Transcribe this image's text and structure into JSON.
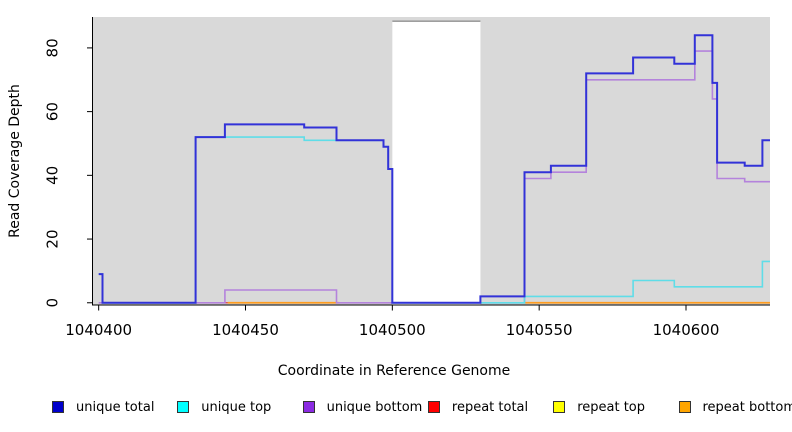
{
  "chart_data": {
    "type": "line",
    "subtype": "step-post",
    "title": "",
    "xlabel": "Coordinate in Reference Genome",
    "ylabel": "Read Coverage Depth",
    "xlim": [
      1040397.9,
      1040628.6
    ],
    "ylim": [
      -0.7,
      89.7
    ],
    "x_ticks": [
      1040400,
      1040450,
      1040500,
      1040550,
      1040600
    ],
    "y_ticks": [
      0,
      20,
      40,
      60,
      80
    ],
    "grid": "off",
    "legend_position": "bottom",
    "plot_bg": {
      "color": "#d9d9d9"
    },
    "gap_region": {
      "x1": 1040500,
      "x2": 1040530,
      "top_value": 88.4,
      "fill": "#ffffff",
      "border_color": "#909090"
    },
    "draw_order": [
      "repeat total",
      "repeat top",
      "repeat bottom",
      "unique bottom",
      "unique top",
      "unique total"
    ],
    "series": [
      {
        "name": "unique total",
        "color": "#3232d8",
        "width": 2,
        "points": [
          [
            1040400,
            9
          ],
          [
            1040401.3,
            0
          ],
          [
            1040433,
            52
          ],
          [
            1040443,
            56
          ],
          [
            1040470,
            55
          ],
          [
            1040481,
            51
          ],
          [
            1040497,
            49
          ],
          [
            1040498.6,
            42
          ],
          [
            1040500,
            0
          ],
          [
            1040530,
            2
          ],
          [
            1040545,
            41
          ],
          [
            1040554,
            43
          ],
          [
            1040566,
            72
          ],
          [
            1040582,
            77
          ],
          [
            1040596,
            75
          ],
          [
            1040603,
            84
          ],
          [
            1040609,
            69
          ],
          [
            1040610.6,
            44
          ],
          [
            1040620,
            43
          ],
          [
            1040626,
            51
          ],
          [
            1040628.6,
            51
          ]
        ]
      },
      {
        "name": "unique top",
        "color": "#5fdde8",
        "width": 1.6,
        "points": [
          [
            1040400,
            9
          ],
          [
            1040401.3,
            0
          ],
          [
            1040433,
            52
          ],
          [
            1040470,
            51
          ],
          [
            1040497,
            49
          ],
          [
            1040498.6,
            42
          ],
          [
            1040500,
            0
          ],
          [
            1040545,
            2
          ],
          [
            1040582,
            7
          ],
          [
            1040596,
            5
          ],
          [
            1040626,
            13
          ],
          [
            1040628.6,
            13
          ]
        ]
      },
      {
        "name": "unique bottom",
        "color": "#b483dc",
        "width": 1.6,
        "points": [
          [
            1040400,
            0
          ],
          [
            1040443,
            4
          ],
          [
            1040481,
            0
          ],
          [
            1040545,
            39
          ],
          [
            1040554,
            41
          ],
          [
            1040566,
            70
          ],
          [
            1040603,
            79
          ],
          [
            1040609,
            64
          ],
          [
            1040610.6,
            39
          ],
          [
            1040620,
            38
          ],
          [
            1040628.6,
            38
          ]
        ]
      },
      {
        "name": "repeat total",
        "color": "#e23b46",
        "width": 1.3,
        "value": 0,
        "segments": [
          [
            1040433,
            1040500
          ],
          [
            1040530,
            1040628.6
          ]
        ]
      },
      {
        "name": "repeat top",
        "color": "#f2ea3a",
        "width": 1.3,
        "value": 0,
        "segments": [
          [
            1040444,
            1040482
          ],
          [
            1040545,
            1040628.6
          ]
        ]
      },
      {
        "name": "repeat bottom",
        "color": "#ff9d20",
        "width": 1.8,
        "value": 0,
        "segments": [
          [
            1040444,
            1040482
          ],
          [
            1040545,
            1040628.6
          ]
        ]
      }
    ],
    "legend": [
      {
        "label": "unique total",
        "color": "#0000cc"
      },
      {
        "label": "unique top",
        "color": "#00ffff"
      },
      {
        "label": "unique bottom",
        "color": "#8b2be2"
      },
      {
        "label": "repeat total",
        "color": "#ff0000"
      },
      {
        "label": "repeat top",
        "color": "#ffff00"
      },
      {
        "label": "repeat bottom",
        "color": "#ffa500"
      }
    ]
  }
}
